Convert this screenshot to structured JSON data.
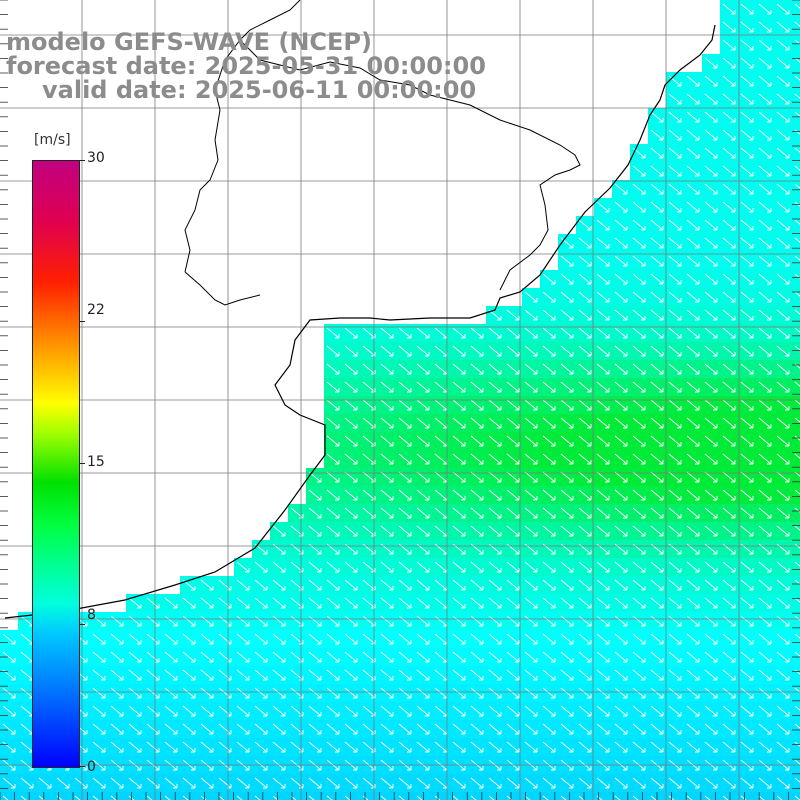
{
  "header": {
    "model": "modelo GEFS-WAVE (NCEP)",
    "forecast": "forecast date: 2025-05-31 00:00:00",
    "valid": "valid date: 2025-06-11 00:00:00"
  },
  "colorbar": {
    "unit": "[m/s]",
    "ticks": [
      "30",
      "22",
      "15",
      "8",
      "0"
    ],
    "tick_values": [
      30,
      22,
      15,
      8,
      0
    ],
    "min": 0,
    "max": 30
  },
  "colors": {
    "land": "#ffffff",
    "grid": "#7a7a7a",
    "coast": "#000000",
    "arrows": "#ffffff"
  }
}
